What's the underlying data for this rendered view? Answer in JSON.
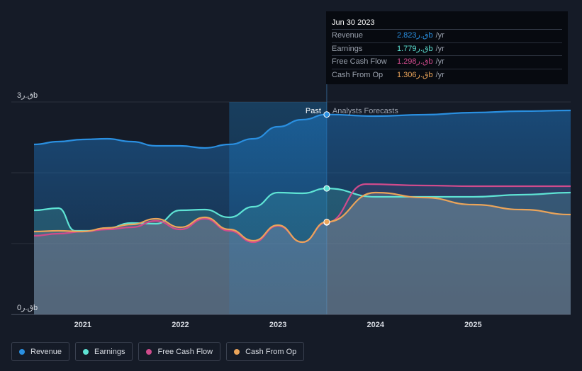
{
  "chart_data": {
    "type": "line",
    "y_axis": {
      "unit": "ق.ر",
      "ylim": [
        0,
        3
      ],
      "tick_labels": [
        "3ق.رb",
        "0ق.رb"
      ]
    },
    "x_axis": {
      "tick_labels": [
        "2021",
        "2022",
        "2023",
        "2024",
        "2025"
      ],
      "tick_values": [
        2021,
        2022,
        2023,
        2024,
        2025
      ],
      "xlim": [
        2020.5,
        2026.0
      ]
    },
    "divider": {
      "x": 2023.5,
      "past_label": "Past",
      "forecast_label": "Analysts Forecasts"
    },
    "series": [
      {
        "name": "Revenue",
        "color": "#2a8fe0",
        "points": [
          [
            2020.5,
            2.4
          ],
          [
            2020.75,
            2.44
          ],
          [
            2021.0,
            2.47
          ],
          [
            2021.25,
            2.48
          ],
          [
            2021.5,
            2.44
          ],
          [
            2021.75,
            2.38
          ],
          [
            2022.0,
            2.38
          ],
          [
            2022.25,
            2.35
          ],
          [
            2022.5,
            2.4
          ],
          [
            2022.75,
            2.48
          ],
          [
            2023.0,
            2.65
          ],
          [
            2023.25,
            2.75
          ],
          [
            2023.5,
            2.823
          ],
          [
            2024.0,
            2.8
          ],
          [
            2024.5,
            2.82
          ],
          [
            2025.0,
            2.85
          ],
          [
            2025.5,
            2.87
          ],
          [
            2026.0,
            2.88
          ]
        ]
      },
      {
        "name": "Earnings",
        "color": "#5ee3d4",
        "points": [
          [
            2020.5,
            1.47
          ],
          [
            2020.75,
            1.5
          ],
          [
            2020.92,
            1.18
          ],
          [
            2021.05,
            1.18
          ],
          [
            2021.25,
            1.22
          ],
          [
            2021.5,
            1.29
          ],
          [
            2021.75,
            1.28
          ],
          [
            2022.0,
            1.47
          ],
          [
            2022.25,
            1.48
          ],
          [
            2022.5,
            1.37
          ],
          [
            2022.75,
            1.52
          ],
          [
            2023.0,
            1.72
          ],
          [
            2023.25,
            1.71
          ],
          [
            2023.5,
            1.779
          ],
          [
            2024.0,
            1.66
          ],
          [
            2024.5,
            1.66
          ],
          [
            2025.0,
            1.66
          ],
          [
            2025.5,
            1.69
          ],
          [
            2026.0,
            1.72
          ]
        ]
      },
      {
        "name": "Free Cash Flow",
        "color": "#d04b8c",
        "points": [
          [
            2020.5,
            1.11
          ],
          [
            2020.75,
            1.14
          ],
          [
            2021.0,
            1.17
          ],
          [
            2021.25,
            1.2
          ],
          [
            2021.5,
            1.23
          ],
          [
            2021.75,
            1.32
          ],
          [
            2022.0,
            1.2
          ],
          [
            2022.25,
            1.35
          ],
          [
            2022.5,
            1.18
          ],
          [
            2022.75,
            1.02
          ],
          [
            2023.0,
            1.25
          ],
          [
            2023.25,
            1.02
          ],
          [
            2023.5,
            1.298
          ],
          [
            2023.9,
            1.84
          ],
          [
            2024.5,
            1.82
          ],
          [
            2025.0,
            1.81
          ],
          [
            2025.5,
            1.81
          ],
          [
            2026.0,
            1.81
          ]
        ]
      },
      {
        "name": "Cash From Op",
        "color": "#eaa45a",
        "points": [
          [
            2020.5,
            1.17
          ],
          [
            2020.75,
            1.18
          ],
          [
            2021.0,
            1.17
          ],
          [
            2021.25,
            1.22
          ],
          [
            2021.5,
            1.27
          ],
          [
            2021.75,
            1.35
          ],
          [
            2022.0,
            1.23
          ],
          [
            2022.25,
            1.37
          ],
          [
            2022.5,
            1.2
          ],
          [
            2022.75,
            1.04
          ],
          [
            2023.0,
            1.26
          ],
          [
            2023.25,
            1.02
          ],
          [
            2023.5,
            1.306
          ],
          [
            2024.0,
            1.72
          ],
          [
            2024.5,
            1.65
          ],
          [
            2025.0,
            1.55
          ],
          [
            2025.5,
            1.48
          ],
          [
            2026.0,
            1.41
          ]
        ]
      }
    ]
  },
  "tooltip": {
    "date": "Jun 30 2023",
    "rows": [
      {
        "label": "Revenue",
        "value": "2.823ق.رb",
        "unit": "/yr",
        "color": "#2a8fe0"
      },
      {
        "label": "Earnings",
        "value": "1.779ق.رb",
        "unit": "/yr",
        "color": "#5ee3d4"
      },
      {
        "label": "Free Cash Flow",
        "value": "1.298ق.رb",
        "unit": "/yr",
        "color": "#d04b8c"
      },
      {
        "label": "Cash From Op",
        "value": "1.306ق.رb",
        "unit": "/yr",
        "color": "#eaa45a"
      }
    ]
  },
  "legend": [
    {
      "label": "Revenue",
      "color": "#2a8fe0"
    },
    {
      "label": "Earnings",
      "color": "#5ee3d4"
    },
    {
      "label": "Free Cash Flow",
      "color": "#d04b8c"
    },
    {
      "label": "Cash From Op",
      "color": "#eaa45a"
    }
  ]
}
